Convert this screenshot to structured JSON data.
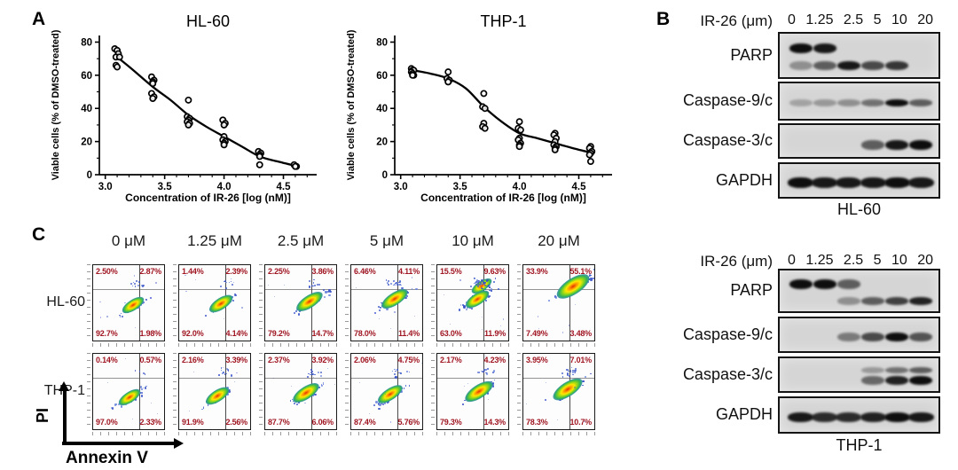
{
  "panel_labels": {
    "a": "A",
    "b": "B",
    "c": "C"
  },
  "colors": {
    "percent_text": "#a01622",
    "dot_blue": "#3752c8",
    "dot_blue_light": "#6d86dd",
    "dot_green": "#35b14e",
    "blot_bg": "#d5d5d5",
    "curve": "#000000"
  },
  "chart_data": [
    {
      "type": "scatter",
      "title": "HL-60",
      "xlabel": "Concentration of IR-26 [log (nM)]",
      "ylabel": "Viable cells (% of DMSO-treated)",
      "xlim": [
        2.95,
        4.78
      ],
      "ylim": [
        0,
        84
      ],
      "xticks": [
        3.0,
        3.5,
        4.0,
        4.5
      ],
      "yticks": [
        0,
        20,
        40,
        60,
        80
      ],
      "points": [
        [
          3.08,
          76
        ],
        [
          3.1,
          75
        ],
        [
          3.11,
          73
        ],
        [
          3.09,
          71
        ],
        [
          3.12,
          71
        ],
        [
          3.09,
          66
        ],
        [
          3.1,
          65
        ],
        [
          3.39,
          59
        ],
        [
          3.41,
          57
        ],
        [
          3.4,
          56
        ],
        [
          3.4,
          55
        ],
        [
          3.39,
          49
        ],
        [
          3.41,
          47
        ],
        [
          3.4,
          46
        ],
        [
          3.7,
          45
        ],
        [
          3.69,
          35
        ],
        [
          3.71,
          34
        ],
        [
          3.7,
          33
        ],
        [
          3.69,
          32
        ],
        [
          3.71,
          31
        ],
        [
          3.7,
          30
        ],
        [
          3.99,
          33
        ],
        [
          4.01,
          31
        ],
        [
          4.0,
          30
        ],
        [
          4.0,
          23
        ],
        [
          3.99,
          21
        ],
        [
          4.01,
          20
        ],
        [
          4.0,
          19
        ],
        [
          4.0,
          18
        ],
        [
          4.29,
          14
        ],
        [
          4.31,
          13
        ],
        [
          4.3,
          12
        ],
        [
          4.3,
          11
        ],
        [
          4.3,
          6
        ],
        [
          4.59,
          6
        ],
        [
          4.61,
          5
        ],
        [
          4.6,
          5
        ]
      ],
      "curve": [
        [
          3.1,
          71
        ],
        [
          3.22,
          64
        ],
        [
          3.4,
          53
        ],
        [
          3.55,
          45
        ],
        [
          3.7,
          36
        ],
        [
          3.85,
          29
        ],
        [
          4.0,
          23
        ],
        [
          4.15,
          17
        ],
        [
          4.3,
          11
        ],
        [
          4.45,
          8
        ],
        [
          4.62,
          5
        ]
      ]
    },
    {
      "type": "scatter",
      "title": "THP-1",
      "xlabel": "Concentration of IR-26 [log (nM)]",
      "ylabel": "Viable cells (% of DMSO-treated)",
      "xlim": [
        2.95,
        4.78
      ],
      "ylim": [
        0,
        84
      ],
      "xticks": [
        3.0,
        3.5,
        4.0,
        4.5
      ],
      "yticks": [
        0,
        20,
        40,
        60,
        80
      ],
      "points": [
        [
          3.09,
          64
        ],
        [
          3.1,
          63
        ],
        [
          3.11,
          63
        ],
        [
          3.09,
          62
        ],
        [
          3.1,
          61
        ],
        [
          3.11,
          60
        ],
        [
          3.1,
          60
        ],
        [
          3.4,
          62
        ],
        [
          3.39,
          58
        ],
        [
          3.41,
          57
        ],
        [
          3.4,
          56
        ],
        [
          3.4,
          56
        ],
        [
          3.7,
          49
        ],
        [
          3.69,
          41
        ],
        [
          3.71,
          40
        ],
        [
          3.7,
          31
        ],
        [
          3.69,
          29
        ],
        [
          3.71,
          28
        ],
        [
          4.0,
          32
        ],
        [
          3.99,
          28
        ],
        [
          4.01,
          27
        ],
        [
          4.0,
          22
        ],
        [
          3.99,
          21
        ],
        [
          4.01,
          19
        ],
        [
          4.0,
          18
        ],
        [
          4.0,
          17
        ],
        [
          4.3,
          25
        ],
        [
          4.29,
          24
        ],
        [
          4.31,
          22
        ],
        [
          4.3,
          20
        ],
        [
          4.29,
          18
        ],
        [
          4.31,
          17
        ],
        [
          4.3,
          16
        ],
        [
          4.3,
          15
        ],
        [
          4.6,
          17
        ],
        [
          4.59,
          16
        ],
        [
          4.61,
          14
        ],
        [
          4.6,
          13
        ],
        [
          4.59,
          12
        ],
        [
          4.6,
          8
        ]
      ],
      "curve": [
        [
          3.1,
          63
        ],
        [
          3.25,
          61
        ],
        [
          3.4,
          58
        ],
        [
          3.55,
          52
        ],
        [
          3.7,
          41
        ],
        [
          3.85,
          32
        ],
        [
          4.0,
          25
        ],
        [
          4.15,
          22
        ],
        [
          4.3,
          19
        ],
        [
          4.45,
          16
        ],
        [
          4.62,
          13
        ]
      ]
    }
  ],
  "western": {
    "header": "IR-26 (μm)",
    "lanes": [
      "0",
      "1.25",
      "2.5",
      "5",
      "10",
      "20"
    ],
    "groups": [
      {
        "cell_line": "HL-60",
        "rows": [
          {
            "label": "PARP",
            "bands": [
              {
                "pos": 0.32,
                "h": 11,
                "lanes": [
                  1,
                  0.95,
                  0,
                  0,
                  0,
                  0
                ]
              },
              {
                "pos": 0.68,
                "h": 10,
                "lanes": [
                  0.35,
                  0.6,
                  0.95,
                  0.7,
                  0.8,
                  0
                ]
              }
            ]
          },
          {
            "label": "Caspase-9/c",
            "bands": [
              {
                "pos": 0.5,
                "h": 8,
                "lanes": [
                  0.25,
                  0.3,
                  0.35,
                  0.5,
                  1,
                  0.6
                ]
              }
            ]
          },
          {
            "label": "Caspase-3/c",
            "bands": [
              {
                "pos": 0.55,
                "h": 11,
                "lanes": [
                  0,
                  0,
                  0,
                  0.6,
                  0.95,
                  1
                ]
              }
            ]
          },
          {
            "label": "GAPDH",
            "bands": [
              {
                "pos": 0.5,
                "h": 12,
                "lanes": [
                  1,
                  0.95,
                  0.95,
                  0.95,
                  1,
                  0.95
                ]
              }
            ]
          }
        ]
      },
      {
        "cell_line": "THP-1",
        "rows": [
          {
            "label": "PARP",
            "bands": [
              {
                "pos": 0.3,
                "h": 11,
                "lanes": [
                  1,
                  1,
                  0.6,
                  0,
                  0,
                  0
                ]
              },
              {
                "pos": 0.68,
                "h": 9,
                "lanes": [
                  0,
                  0,
                  0.35,
                  0.6,
                  0.75,
                  0.9
                ]
              }
            ]
          },
          {
            "label": "Caspase-9/c",
            "bands": [
              {
                "pos": 0.5,
                "h": 10,
                "lanes": [
                  0,
                  0,
                  0.45,
                  0.7,
                  1,
                  0.65
                ]
              }
            ]
          },
          {
            "label": "Caspase-3/c",
            "bands": [
              {
                "pos": 0.33,
                "h": 7,
                "lanes": [
                  0,
                  0,
                  0,
                  0.3,
                  0.5,
                  0.6
                ]
              },
              {
                "pos": 0.62,
                "h": 10,
                "lanes": [
                  0,
                  0,
                  0,
                  0.55,
                  0.9,
                  1
                ]
              }
            ]
          },
          {
            "label": "GAPDH",
            "bands": [
              {
                "pos": 0.5,
                "h": 11,
                "lanes": [
                  0.95,
                  0.85,
                  0.85,
                  0.9,
                  1,
                  0.95
                ]
              }
            ]
          }
        ]
      }
    ]
  },
  "flow": {
    "columns": [
      "0 μM",
      "1.25 μM",
      "2.5 μM",
      "5 μM",
      "10 μM",
      "20 μM"
    ],
    "xlabel": "Annexin V",
    "ylabel": "PI",
    "rows": [
      {
        "cell_line": "HL-60",
        "plots": [
          {
            "ul": "2.50%",
            "ur": "2.87%",
            "ll": "92.7%",
            "lr": "1.98%",
            "blob": {
              "x": 0.55,
              "y": 0.52,
              "w": 28
            }
          },
          {
            "ul": "1.44%",
            "ur": "2.39%",
            "ll": "92.0%",
            "lr": "4.14%",
            "blob": {
              "x": 0.57,
              "y": 0.5,
              "w": 30
            }
          },
          {
            "ul": "2.25%",
            "ur": "3.86%",
            "ll": "79.2%",
            "lr": "14.7%",
            "blob": {
              "x": 0.61,
              "y": 0.47,
              "w": 34
            }
          },
          {
            "ul": "6.46%",
            "ur": "4.11%",
            "ll": "78.0%",
            "lr": "11.4%",
            "blob": {
              "x": 0.6,
              "y": 0.44,
              "w": 34
            }
          },
          {
            "ul": "15.5%",
            "ur": "9.63%",
            "ll": "63.0%",
            "lr": "11.9%",
            "blob": {
              "x": 0.55,
              "y": 0.44,
              "w": 30
            },
            "blob2": {
              "x": 0.61,
              "y": 0.27,
              "w": 26
            }
          },
          {
            "ul": "33.9%",
            "ur": "55.1%",
            "ll": "7.49%",
            "lr": "3.48%",
            "blob": {
              "x": 0.68,
              "y": 0.27,
              "w": 42
            }
          }
        ]
      },
      {
        "cell_line": "THP-1",
        "plots": [
          {
            "ul": "0.14%",
            "ur": "0.57%",
            "ll": "97.0%",
            "lr": "2.33%",
            "blob": {
              "x": 0.5,
              "y": 0.56,
              "w": 28
            }
          },
          {
            "ul": "2.16%",
            "ur": "3.39%",
            "ll": "91.9%",
            "lr": "2.56%",
            "blob": {
              "x": 0.53,
              "y": 0.54,
              "w": 30
            }
          },
          {
            "ul": "2.37%",
            "ur": "3.92%",
            "ll": "87.7%",
            "lr": "6.06%",
            "blob": {
              "x": 0.56,
              "y": 0.51,
              "w": 34
            }
          },
          {
            "ul": "2.06%",
            "ur": "4.75%",
            "ll": "87.4%",
            "lr": "5.76%",
            "blob": {
              "x": 0.54,
              "y": 0.53,
              "w": 32
            }
          },
          {
            "ul": "2.17%",
            "ur": "4.23%",
            "ll": "79.3%",
            "lr": "14.3%",
            "blob": {
              "x": 0.57,
              "y": 0.49,
              "w": 36
            }
          },
          {
            "ul": "3.95%",
            "ur": "7.01%",
            "ll": "78.3%",
            "lr": "10.7%",
            "blob": {
              "x": 0.61,
              "y": 0.46,
              "w": 38
            }
          }
        ]
      }
    ]
  }
}
